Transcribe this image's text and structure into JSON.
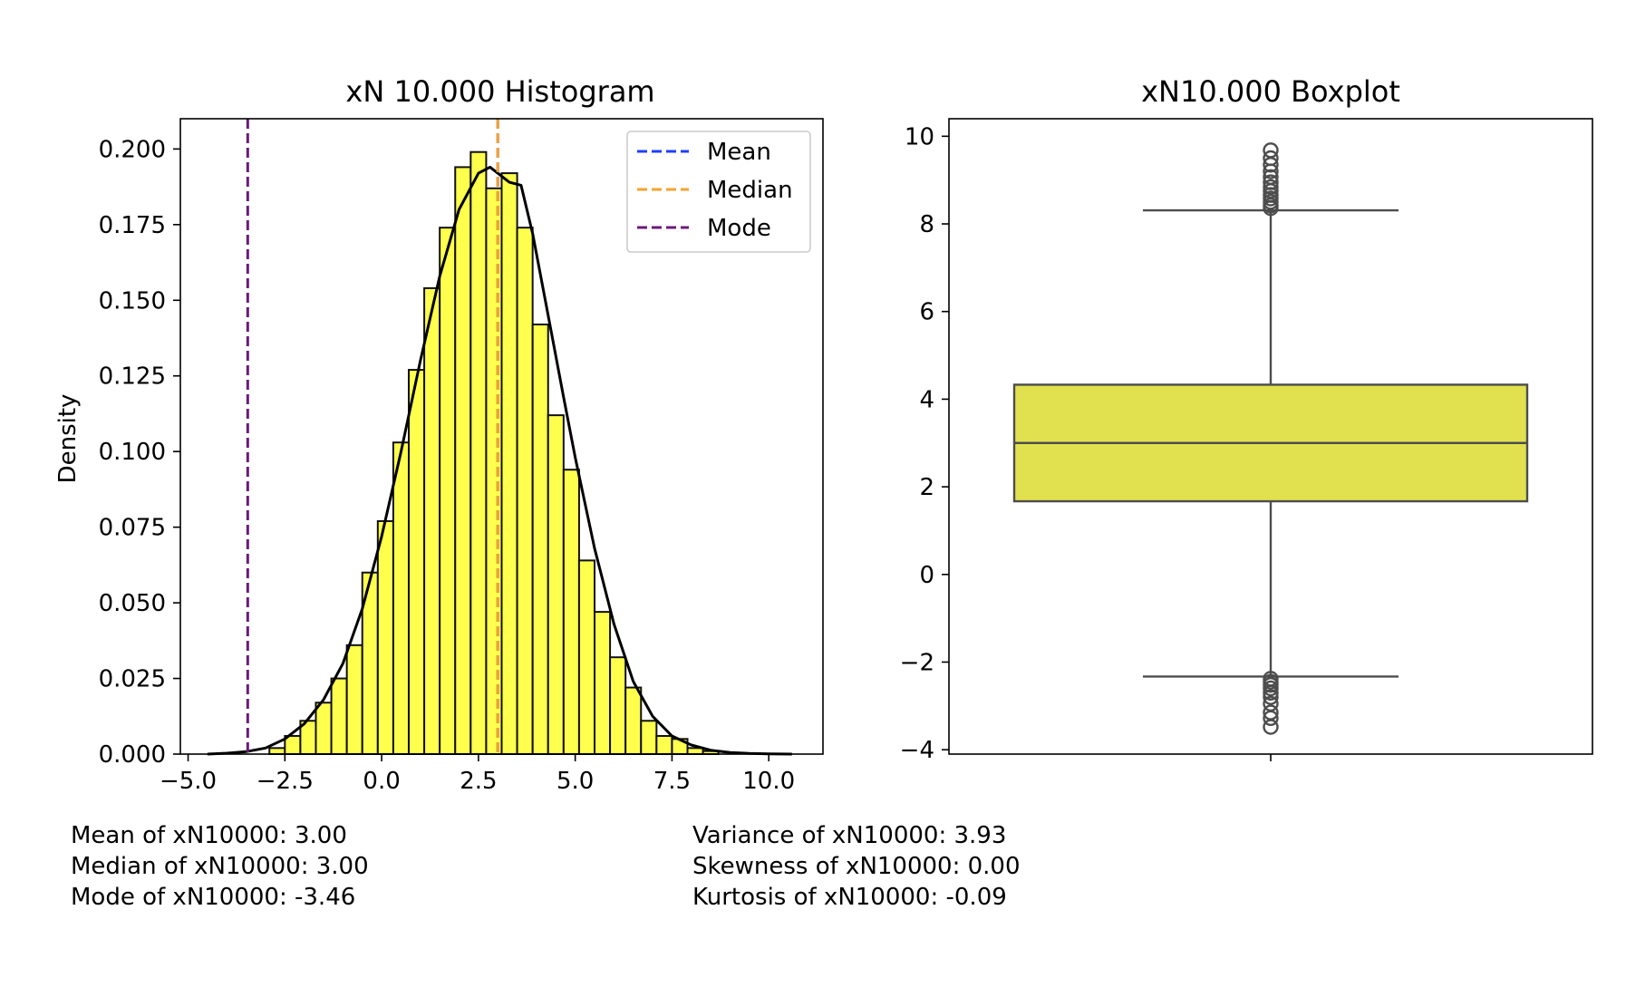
{
  "chart_data": [
    {
      "type": "histogram",
      "title": "xN 10.000 Histogram",
      "xlabel": "",
      "ylabel": "Density",
      "xlim": [
        -5.2,
        11.4
      ],
      "ylim": [
        0,
        0.21
      ],
      "xticks": [
        -5.0,
        -2.5,
        0.0,
        2.5,
        5.0,
        7.5,
        10.0
      ],
      "xtick_labels": [
        "−5.0",
        "−2.5",
        "0.0",
        "2.5",
        "5.0",
        "7.5",
        "10.0"
      ],
      "yticks": [
        0.0,
        0.025,
        0.05,
        0.075,
        0.1,
        0.125,
        0.15,
        0.175,
        0.2
      ],
      "ytick_labels": [
        "0.000",
        "0.025",
        "0.050",
        "0.075",
        "0.100",
        "0.125",
        "0.150",
        "0.175",
        "0.200"
      ],
      "bar_color": "#ffff4d",
      "bins": [
        {
          "x0": -2.9,
          "x1": -2.5,
          "density": 0.002
        },
        {
          "x0": -2.5,
          "x1": -2.1,
          "density": 0.006
        },
        {
          "x0": -2.1,
          "x1": -1.7,
          "density": 0.011
        },
        {
          "x0": -1.7,
          "x1": -1.3,
          "density": 0.017
        },
        {
          "x0": -1.3,
          "x1": -0.9,
          "density": 0.025
        },
        {
          "x0": -0.9,
          "x1": -0.5,
          "density": 0.036
        },
        {
          "x0": -0.5,
          "x1": -0.1,
          "density": 0.06
        },
        {
          "x0": -0.1,
          "x1": 0.3,
          "density": 0.077
        },
        {
          "x0": 0.3,
          "x1": 0.7,
          "density": 0.103
        },
        {
          "x0": 0.7,
          "x1": 1.1,
          "density": 0.127
        },
        {
          "x0": 1.1,
          "x1": 1.5,
          "density": 0.154
        },
        {
          "x0": 1.5,
          "x1": 1.9,
          "density": 0.174
        },
        {
          "x0": 1.9,
          "x1": 2.3,
          "density": 0.194
        },
        {
          "x0": 2.3,
          "x1": 2.7,
          "density": 0.199
        },
        {
          "x0": 2.7,
          "x1": 3.1,
          "density": 0.187
        },
        {
          "x0": 3.1,
          "x1": 3.5,
          "density": 0.192
        },
        {
          "x0": 3.5,
          "x1": 3.9,
          "density": 0.174
        },
        {
          "x0": 3.9,
          "x1": 4.3,
          "density": 0.142
        },
        {
          "x0": 4.3,
          "x1": 4.7,
          "density": 0.112
        },
        {
          "x0": 4.7,
          "x1": 5.1,
          "density": 0.094
        },
        {
          "x0": 5.1,
          "x1": 5.5,
          "density": 0.064
        },
        {
          "x0": 5.5,
          "x1": 5.9,
          "density": 0.047
        },
        {
          "x0": 5.9,
          "x1": 6.3,
          "density": 0.032
        },
        {
          "x0": 6.3,
          "x1": 6.7,
          "density": 0.022
        },
        {
          "x0": 6.7,
          "x1": 7.1,
          "density": 0.011
        },
        {
          "x0": 7.1,
          "x1": 7.5,
          "density": 0.006
        },
        {
          "x0": 7.5,
          "x1": 7.9,
          "density": 0.005
        },
        {
          "x0": 7.9,
          "x1": 8.3,
          "density": 0.002
        },
        {
          "x0": 8.3,
          "x1": 8.7,
          "density": 0.001
        }
      ],
      "kde": {
        "x": [
          -4.5,
          -4.0,
          -3.5,
          -3.0,
          -2.5,
          -2.0,
          -1.5,
          -1.0,
          -0.5,
          0.0,
          0.5,
          1.0,
          1.5,
          2.0,
          2.5,
          2.8,
          3.0,
          3.3,
          3.6,
          3.9,
          4.3,
          4.7,
          5.0,
          5.5,
          6.0,
          6.5,
          7.0,
          7.5,
          8.0,
          8.5,
          9.0,
          9.5,
          10.0,
          10.6
        ],
        "y": [
          0.0,
          0.0003,
          0.0008,
          0.002,
          0.005,
          0.01,
          0.018,
          0.03,
          0.048,
          0.072,
          0.1,
          0.13,
          0.158,
          0.18,
          0.192,
          0.194,
          0.192,
          0.189,
          0.188,
          0.172,
          0.145,
          0.118,
          0.098,
          0.068,
          0.043,
          0.024,
          0.0125,
          0.006,
          0.003,
          0.0013,
          0.0005,
          0.0002,
          5e-05,
          0.0
        ]
      },
      "reference_lines": [
        {
          "name": "Mean",
          "value": 3.0,
          "color": "#1f3dff"
        },
        {
          "name": "Median",
          "value": 3.0,
          "color": "#f4a32e"
        },
        {
          "name": "Mode",
          "value": -3.46,
          "color": "#6a1b7a"
        }
      ],
      "legend_placement": "top-right"
    },
    {
      "type": "box",
      "title": "xN10.000 Boxplot",
      "ylim": [
        -4.1,
        10.4
      ],
      "yticks": [
        -4,
        -2,
        0,
        2,
        4,
        6,
        8,
        10
      ],
      "ytick_labels": [
        "−4",
        "−2",
        "0",
        "2",
        "4",
        "6",
        "8",
        "10"
      ],
      "box_color": "#e1e14f",
      "q1": 1.67,
      "median": 3.0,
      "q3": 4.33,
      "whisker_low": -2.33,
      "whisker_high": 8.31,
      "outliers_high": [
        8.36,
        8.42,
        8.5,
        8.58,
        8.66,
        8.75,
        8.84,
        8.95,
        9.07,
        9.2,
        9.35,
        9.5,
        9.68
      ],
      "outliers_low": [
        -2.38,
        -2.45,
        -2.52,
        -2.6,
        -2.7,
        -2.8,
        -2.95,
        -3.15,
        -3.28,
        -3.48
      ]
    }
  ],
  "stats_left": [
    "Mean of xN10000: 3.00",
    "Median of xN10000: 3.00",
    "Mode of xN10000: -3.46"
  ],
  "stats_right": [
    "Variance of xN10000: 3.93",
    "Skewness of xN10000: 0.00",
    "Kurtosis of xN10000: -0.09"
  ]
}
